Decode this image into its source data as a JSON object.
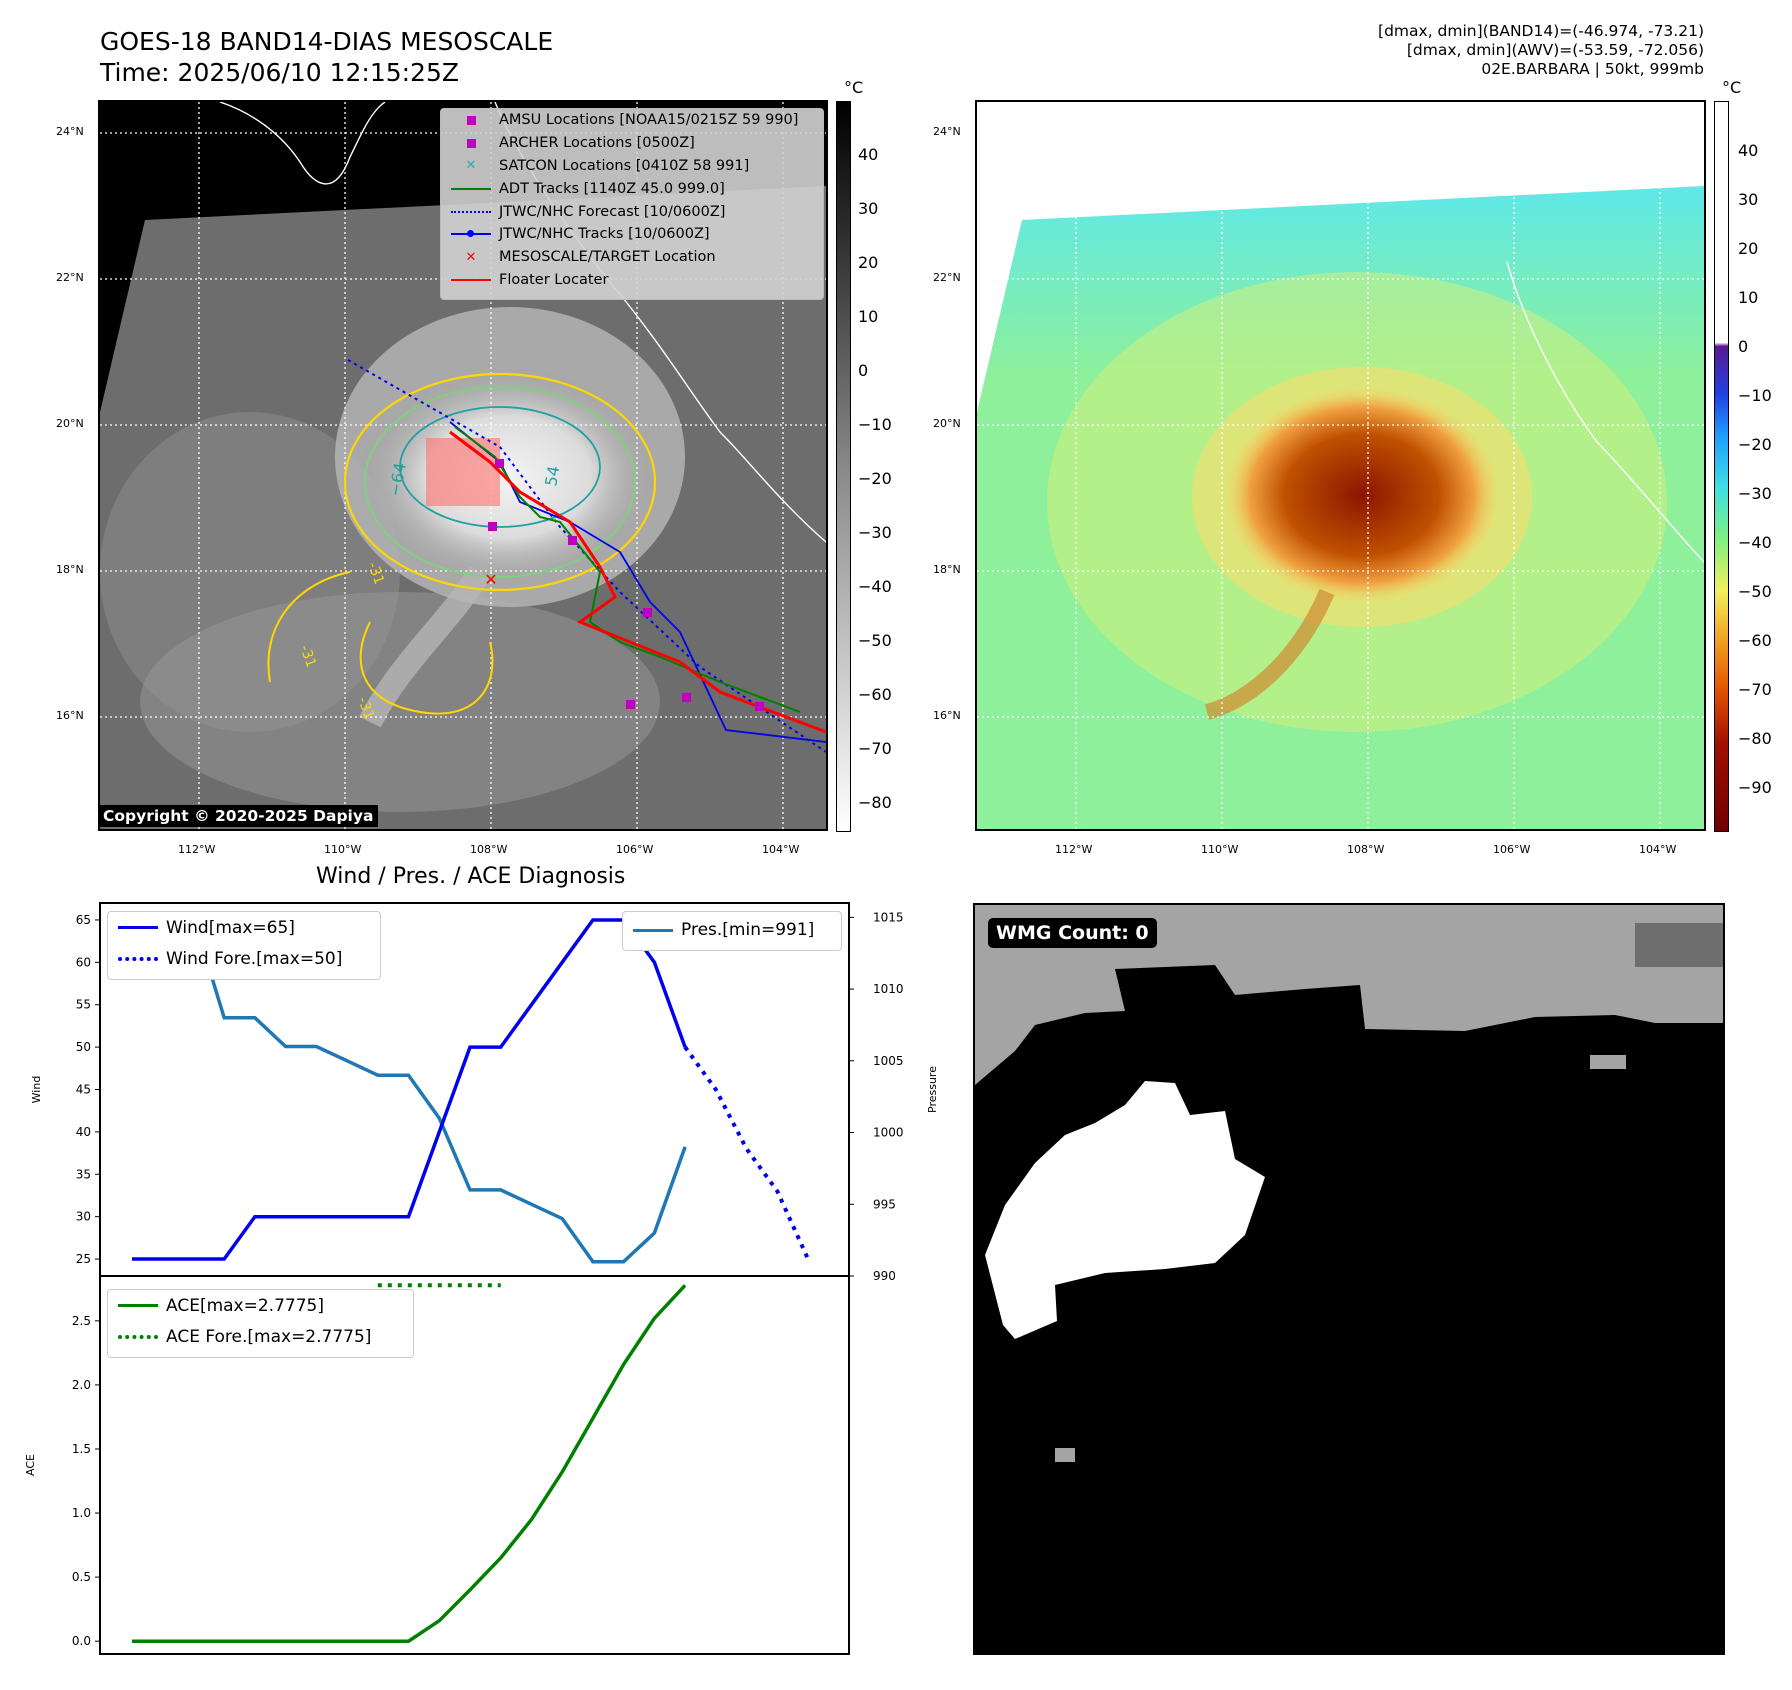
{
  "header": {
    "title_line1": "GOES-18 BAND14-DIAS MESOSCALE",
    "title_line2": "Time: 2025/06/10 12:15:25Z",
    "info_line1": "[dmax, dmin](BAND14)=(-46.974, -73.21)",
    "info_line2": "[dmax, dmin](AWV)=(-53.59, -72.056)",
    "info_line3": "02E.BARBARA | 50kt, 999mb"
  },
  "map_left": {
    "lat_labels": [
      "24°N",
      "22°N",
      "20°N",
      "18°N",
      "16°N"
    ],
    "lon_labels": [
      "112°W",
      "110°W",
      "108°W",
      "106°W",
      "104°W"
    ],
    "colorbar_unit": "°C",
    "colorbar_ticks": [
      "40",
      "30",
      "20",
      "10",
      "0",
      "−10",
      "−20",
      "−30",
      "−40",
      "−50",
      "−60",
      "−70",
      "−80"
    ],
    "copyright": "Copyright © 2020-2025 Dapiya",
    "contour_labels": [
      "−64",
      "54",
      "-31",
      "-31",
      "-31"
    ],
    "legend": [
      {
        "label": "AMSU Locations [NOAA15/0215Z 59 990]",
        "symbol": "square",
        "color": "#c000c0"
      },
      {
        "label": "ARCHER Locations [0500Z]",
        "symbol": "square",
        "color": "#c000c0"
      },
      {
        "label": "SATCON Locations [0410Z 58 991]",
        "symbol": "x",
        "color": "#20b0b0"
      },
      {
        "label": "ADT Tracks [1140Z 45.0 999.0]",
        "symbol": "line",
        "color": "#008000"
      },
      {
        "label": "JTWC/NHC Forecast [10/0600Z]",
        "symbol": "dotted",
        "color": "#0000ff"
      },
      {
        "label": "JTWC/NHC Tracks [10/0600Z]",
        "symbol": "line-dot",
        "color": "#0000ff"
      },
      {
        "label": "MESOSCALE/TARGET Location",
        "symbol": "x",
        "color": "#ff0000"
      },
      {
        "label": "Floater Locater",
        "symbol": "line",
        "color": "#ff0000"
      }
    ]
  },
  "map_right": {
    "lat_labels": [
      "24°N",
      "22°N",
      "20°N",
      "18°N",
      "16°N"
    ],
    "lon_labels": [
      "112°W",
      "110°W",
      "108°W",
      "106°W",
      "104°W"
    ],
    "colorbar_unit": "°C",
    "colorbar_ticks": [
      "40",
      "30",
      "20",
      "10",
      "0",
      "−10",
      "−20",
      "−30",
      "−40",
      "−50",
      "−60",
      "−70",
      "−80",
      "−90"
    ]
  },
  "wmg_panel": {
    "label": "WMG Count: 0"
  },
  "chart_data": [
    {
      "type": "line",
      "title": "Wind / Pres. / ACE Diagnosis",
      "ylabel": "Wind",
      "y2label": "Pressure",
      "ylim": [
        23.0,
        67.0
      ],
      "y2lim": [
        990,
        1016
      ],
      "yticks": [
        25,
        30,
        35,
        40,
        45,
        50,
        55,
        60,
        65
      ],
      "y2ticks": [
        990,
        995,
        1000,
        1005,
        1010,
        1015
      ],
      "x": [
        0,
        1,
        2,
        3,
        4,
        5,
        6,
        7,
        8,
        9,
        10,
        11,
        12,
        13,
        14,
        15,
        16,
        17,
        18,
        19,
        20,
        21,
        22
      ],
      "series": [
        {
          "name": "Wind[max=65]",
          "axis": "left",
          "color": "#0000ee",
          "style": "solid",
          "values": [
            25,
            25,
            25,
            25,
            30,
            30,
            30,
            30,
            30,
            30,
            40,
            50,
            50,
            55,
            60,
            65,
            65,
            60,
            50,
            null,
            null,
            null,
            null
          ]
        },
        {
          "name": "Wind Fore.[max=50]",
          "axis": "left",
          "color": "#0000ee",
          "style": "dotted",
          "values": [
            null,
            null,
            null,
            null,
            null,
            null,
            null,
            null,
            null,
            null,
            null,
            null,
            null,
            null,
            null,
            null,
            null,
            null,
            50,
            45,
            38,
            33,
            25
          ]
        },
        {
          "name": "Pres.[min=991]",
          "axis": "right",
          "color": "#1f77b4",
          "style": "solid",
          "values": [
            1015,
            1015,
            1015,
            1008,
            1008,
            1006,
            1006,
            1005,
            1004,
            1004,
            1001,
            996,
            996,
            995,
            994,
            991,
            991,
            993,
            999,
            null,
            null,
            null,
            null
          ]
        }
      ]
    },
    {
      "type": "line",
      "ylabel": "ACE",
      "ylim": [
        -0.1,
        2.85
      ],
      "yticks": [
        0.0,
        0.5,
        1.0,
        1.5,
        2.0,
        2.5
      ],
      "x": [
        0,
        1,
        2,
        3,
        4,
        5,
        6,
        7,
        8,
        9,
        10,
        11,
        12,
        13,
        14,
        15,
        16,
        17,
        18,
        19,
        20,
        21,
        22
      ],
      "series": [
        {
          "name": "ACE[max=2.7775]",
          "color": "#008000",
          "style": "solid",
          "values": [
            0,
            0,
            0,
            0,
            0,
            0,
            0,
            0,
            0,
            0,
            0.16,
            0.4,
            0.65,
            0.95,
            1.32,
            1.74,
            2.16,
            2.52,
            2.7775,
            null,
            null,
            null,
            null
          ]
        },
        {
          "name": "ACE Fore.[max=2.7775]",
          "color": "#008000",
          "style": "dotted",
          "values": [
            null,
            null,
            null,
            null,
            null,
            null,
            null,
            null,
            2.7775,
            2.7775,
            2.7775,
            2.7775,
            2.7775,
            null,
            null,
            null,
            null,
            null,
            null,
            null,
            null,
            null,
            null
          ]
        }
      ]
    }
  ]
}
